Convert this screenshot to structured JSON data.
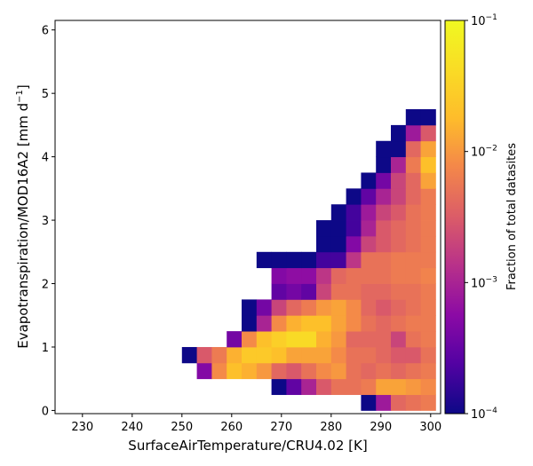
{
  "chart_data": {
    "type": "heatmap",
    "title": "",
    "xlabel": "SurfaceAirTemperature/CRU4.02 [K]",
    "ylabel_main": "Evapotranspiration/MOD16A2 [mm d",
    "ylabel_sup": "−1",
    "ylabel_close": "]",
    "xlim": [
      224.5,
      302.0
    ],
    "ylim": [
      -0.05,
      6.15
    ],
    "xticks": [
      230,
      240,
      250,
      260,
      270,
      280,
      290,
      300
    ],
    "yticks": [
      0,
      1,
      2,
      3,
      4,
      5,
      6
    ],
    "bin_width_x": 3.0,
    "bin_height_y": 0.25,
    "colormap": "plasma",
    "colorbar": {
      "label": "Fraction of total datasites",
      "scale": "log",
      "min": 0.0001,
      "max": 0.1,
      "ticks": [
        {
          "value": 0.0001,
          "base": "10",
          "exp": "−4"
        },
        {
          "value": 0.001,
          "base": "10",
          "exp": "−3"
        },
        {
          "value": 0.01,
          "base": "10",
          "exp": "−2"
        },
        {
          "value": 0.1,
          "base": "10",
          "exp": "−1"
        }
      ]
    },
    "cells": [
      [
        286,
        0.0,
        0.0001
      ],
      [
        289,
        0.0,
        0.0008
      ],
      [
        292,
        0.0,
        0.004
      ],
      [
        295,
        0.0,
        0.005
      ],
      [
        298,
        0.0,
        0.006
      ],
      [
        268,
        0.25,
        0.0001
      ],
      [
        271,
        0.25,
        0.0003
      ],
      [
        274,
        0.25,
        0.001
      ],
      [
        277,
        0.25,
        0.003
      ],
      [
        280,
        0.25,
        0.005
      ],
      [
        283,
        0.25,
        0.005
      ],
      [
        286,
        0.25,
        0.006
      ],
      [
        289,
        0.25,
        0.012
      ],
      [
        292,
        0.25,
        0.012
      ],
      [
        295,
        0.25,
        0.01
      ],
      [
        298,
        0.25,
        0.008
      ],
      [
        253,
        0.5,
        0.0005
      ],
      [
        256,
        0.5,
        0.008
      ],
      [
        259,
        0.5,
        0.02
      ],
      [
        262,
        0.5,
        0.015
      ],
      [
        265,
        0.5,
        0.01
      ],
      [
        268,
        0.5,
        0.004
      ],
      [
        271,
        0.5,
        0.003
      ],
      [
        274,
        0.5,
        0.005
      ],
      [
        277,
        0.5,
        0.008
      ],
      [
        280,
        0.5,
        0.01
      ],
      [
        283,
        0.5,
        0.005
      ],
      [
        286,
        0.5,
        0.004
      ],
      [
        289,
        0.5,
        0.005
      ],
      [
        292,
        0.5,
        0.004
      ],
      [
        295,
        0.5,
        0.005
      ],
      [
        298,
        0.5,
        0.006
      ],
      [
        250,
        0.75,
        0.0001
      ],
      [
        253,
        0.75,
        0.003
      ],
      [
        256,
        0.75,
        0.006
      ],
      [
        259,
        0.75,
        0.015
      ],
      [
        262,
        0.75,
        0.025
      ],
      [
        265,
        0.75,
        0.025
      ],
      [
        268,
        0.75,
        0.02
      ],
      [
        271,
        0.75,
        0.012
      ],
      [
        274,
        0.75,
        0.012
      ],
      [
        277,
        0.75,
        0.012
      ],
      [
        280,
        0.75,
        0.008
      ],
      [
        283,
        0.75,
        0.005
      ],
      [
        286,
        0.75,
        0.005
      ],
      [
        289,
        0.75,
        0.004
      ],
      [
        292,
        0.75,
        0.003
      ],
      [
        295,
        0.75,
        0.003
      ],
      [
        298,
        0.75,
        0.005
      ],
      [
        259,
        1.0,
        0.0004
      ],
      [
        262,
        1.0,
        0.008
      ],
      [
        265,
        1.0,
        0.02
      ],
      [
        268,
        1.0,
        0.03
      ],
      [
        271,
        1.0,
        0.04
      ],
      [
        274,
        1.0,
        0.04
      ],
      [
        277,
        1.0,
        0.015
      ],
      [
        280,
        1.0,
        0.01
      ],
      [
        283,
        1.0,
        0.004
      ],
      [
        286,
        1.0,
        0.004
      ],
      [
        289,
        1.0,
        0.004
      ],
      [
        292,
        1.0,
        0.002
      ],
      [
        295,
        1.0,
        0.005
      ],
      [
        298,
        1.0,
        0.006
      ],
      [
        262,
        1.25,
        0.0001
      ],
      [
        265,
        1.25,
        0.001
      ],
      [
        268,
        1.25,
        0.008
      ],
      [
        271,
        1.25,
        0.015
      ],
      [
        274,
        1.25,
        0.02
      ],
      [
        277,
        1.25,
        0.02
      ],
      [
        280,
        1.25,
        0.012
      ],
      [
        283,
        1.25,
        0.008
      ],
      [
        286,
        1.25,
        0.005
      ],
      [
        289,
        1.25,
        0.004
      ],
      [
        292,
        1.25,
        0.005
      ],
      [
        295,
        1.25,
        0.006
      ],
      [
        298,
        1.25,
        0.006
      ],
      [
        262,
        1.5,
        0.0001
      ],
      [
        265,
        1.5,
        0.0004
      ],
      [
        268,
        1.5,
        0.002
      ],
      [
        271,
        1.5,
        0.004
      ],
      [
        274,
        1.5,
        0.006
      ],
      [
        277,
        1.5,
        0.01
      ],
      [
        280,
        1.5,
        0.012
      ],
      [
        283,
        1.5,
        0.008
      ],
      [
        286,
        1.5,
        0.004
      ],
      [
        289,
        1.5,
        0.003
      ],
      [
        292,
        1.5,
        0.004
      ],
      [
        295,
        1.5,
        0.005
      ],
      [
        298,
        1.5,
        0.006
      ],
      [
        268,
        1.75,
        0.0003
      ],
      [
        271,
        1.75,
        0.0004
      ],
      [
        274,
        1.75,
        0.0003
      ],
      [
        277,
        1.75,
        0.002
      ],
      [
        280,
        1.75,
        0.005
      ],
      [
        283,
        1.75,
        0.005
      ],
      [
        286,
        1.75,
        0.004
      ],
      [
        289,
        1.75,
        0.004
      ],
      [
        292,
        1.75,
        0.005
      ],
      [
        295,
        1.75,
        0.005
      ],
      [
        298,
        1.75,
        0.006
      ],
      [
        268,
        2.0,
        0.0005
      ],
      [
        271,
        2.0,
        0.0006
      ],
      [
        274,
        2.0,
        0.0006
      ],
      [
        277,
        2.0,
        0.0015
      ],
      [
        280,
        2.0,
        0.004
      ],
      [
        283,
        2.0,
        0.005
      ],
      [
        286,
        2.0,
        0.005
      ],
      [
        289,
        2.0,
        0.005
      ],
      [
        292,
        2.0,
        0.006
      ],
      [
        295,
        2.0,
        0.006
      ],
      [
        298,
        2.0,
        0.007
      ],
      [
        265,
        2.25,
        0.0001
      ],
      [
        268,
        2.25,
        0.0001
      ],
      [
        271,
        2.25,
        0.0001
      ],
      [
        274,
        2.25,
        0.0001
      ],
      [
        277,
        2.25,
        0.0002
      ],
      [
        280,
        2.25,
        0.0002
      ],
      [
        283,
        2.25,
        0.0015
      ],
      [
        286,
        2.25,
        0.005
      ],
      [
        289,
        2.25,
        0.005
      ],
      [
        292,
        2.25,
        0.006
      ],
      [
        295,
        2.25,
        0.006
      ],
      [
        298,
        2.25,
        0.006
      ],
      [
        277,
        2.5,
        0.0001
      ],
      [
        280,
        2.5,
        0.0001
      ],
      [
        283,
        2.5,
        0.0005
      ],
      [
        286,
        2.5,
        0.002
      ],
      [
        289,
        2.5,
        0.003
      ],
      [
        292,
        2.5,
        0.004
      ],
      [
        295,
        2.5,
        0.005
      ],
      [
        298,
        2.5,
        0.006
      ],
      [
        277,
        2.75,
        0.0001
      ],
      [
        280,
        2.75,
        0.0001
      ],
      [
        283,
        2.75,
        0.0002
      ],
      [
        286,
        2.75,
        0.001
      ],
      [
        289,
        2.75,
        0.003
      ],
      [
        292,
        2.75,
        0.004
      ],
      [
        295,
        2.75,
        0.005
      ],
      [
        298,
        2.75,
        0.006
      ],
      [
        280,
        3.0,
        0.0001
      ],
      [
        283,
        3.0,
        0.0002
      ],
      [
        286,
        3.0,
        0.0008
      ],
      [
        289,
        3.0,
        0.002
      ],
      [
        292,
        3.0,
        0.003
      ],
      [
        295,
        3.0,
        0.005
      ],
      [
        298,
        3.0,
        0.006
      ],
      [
        283,
        3.25,
        0.0001
      ],
      [
        286,
        3.25,
        0.0003
      ],
      [
        289,
        3.25,
        0.001
      ],
      [
        292,
        3.25,
        0.002
      ],
      [
        295,
        3.25,
        0.004
      ],
      [
        298,
        3.25,
        0.006
      ],
      [
        286,
        3.5,
        0.0001
      ],
      [
        289,
        3.5,
        0.0004
      ],
      [
        292,
        3.5,
        0.002
      ],
      [
        295,
        3.5,
        0.004
      ],
      [
        298,
        3.5,
        0.012
      ],
      [
        289,
        3.75,
        0.0001
      ],
      [
        292,
        3.75,
        0.001
      ],
      [
        295,
        3.75,
        0.006
      ],
      [
        298,
        3.75,
        0.02
      ],
      [
        289,
        4.0,
        0.0001
      ],
      [
        292,
        4.0,
        0.0001
      ],
      [
        295,
        4.0,
        0.004
      ],
      [
        298,
        4.0,
        0.012
      ],
      [
        292,
        4.25,
        0.0001
      ],
      [
        295,
        4.25,
        0.0008
      ],
      [
        298,
        4.25,
        0.003
      ],
      [
        295,
        4.5,
        0.0001
      ],
      [
        298,
        4.5,
        0.0001
      ]
    ]
  }
}
